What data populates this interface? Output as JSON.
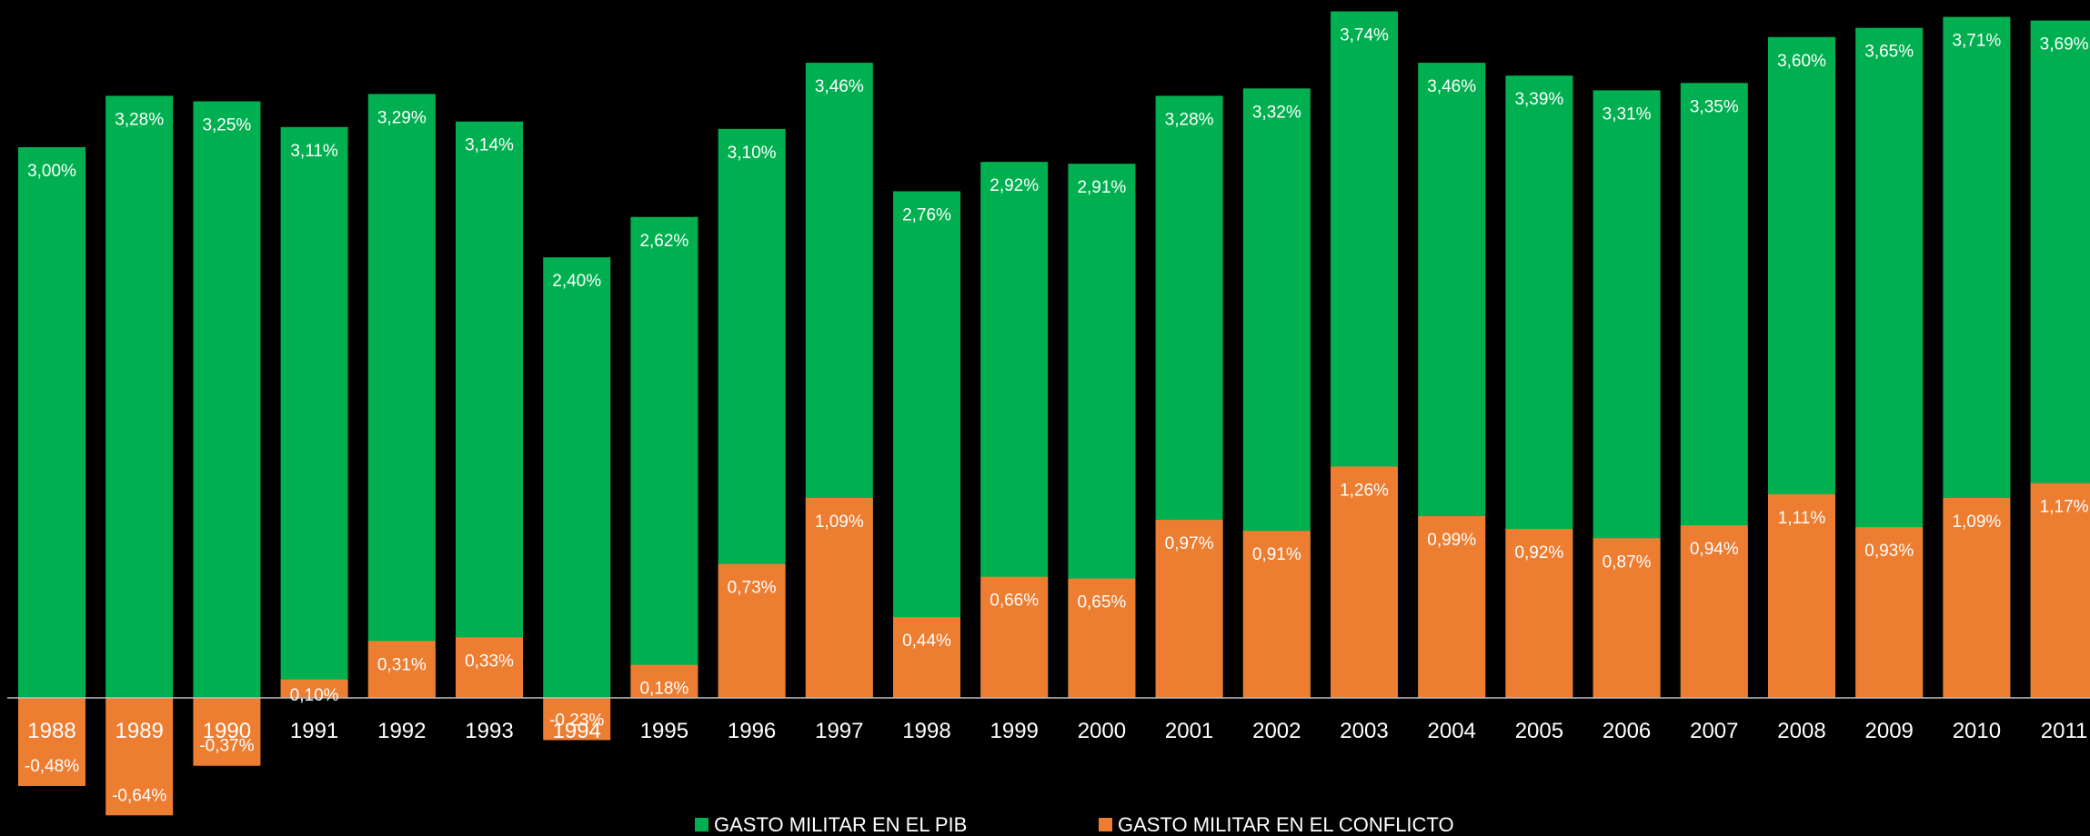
{
  "chart_data": {
    "type": "bar",
    "categories": [
      "1988",
      "1989",
      "1990",
      "1991",
      "1992",
      "1993",
      "1994",
      "1995",
      "1996",
      "1997",
      "1998",
      "1999",
      "2000",
      "2001",
      "2002",
      "2003",
      "2004",
      "2005",
      "2006",
      "2007",
      "2008",
      "2009",
      "2010",
      "2011"
    ],
    "series": [
      {
        "name": "GASTO MILITAR EN EL PIB",
        "color": "#00B050",
        "values": [
          3.0,
          3.28,
          3.25,
          3.11,
          3.29,
          3.14,
          2.4,
          2.62,
          3.1,
          3.46,
          2.76,
          2.92,
          2.91,
          3.28,
          3.32,
          3.74,
          3.46,
          3.39,
          3.31,
          3.35,
          3.6,
          3.65,
          3.71,
          3.69
        ],
        "labels": [
          "3,00%",
          "3,28%",
          "3,25%",
          "3,11%",
          "3,29%",
          "3,14%",
          "2,40%",
          "2,62%",
          "3,10%",
          "3,46%",
          "2,76%",
          "2,92%",
          "2,91%",
          "3,28%",
          "3,32%",
          "3,74%",
          "3,46%",
          "3,39%",
          "3,31%",
          "3,35%",
          "3,60%",
          "3,65%",
          "3,71%",
          "3,69%"
        ]
      },
      {
        "name": "GASTO MILITAR EN EL CONFLICTO",
        "color": "#ED7D31",
        "values": [
          -0.48,
          -0.64,
          -0.37,
          0.1,
          0.31,
          0.33,
          -0.23,
          0.18,
          0.73,
          1.09,
          0.44,
          0.66,
          0.65,
          0.97,
          0.91,
          1.26,
          0.99,
          0.92,
          0.87,
          0.94,
          1.11,
          0.93,
          1.09,
          1.17
        ],
        "labels": [
          "-0,48%",
          "-0,64%",
          "-0,37%",
          "0,10%",
          "0,31%",
          "0,33%",
          "-0,23%",
          "0,18%",
          "0,73%",
          "1,09%",
          "0,44%",
          "0,66%",
          "0,65%",
          "0,97%",
          "0,91%",
          "1,26%",
          "0,99%",
          "0,92%",
          "0,87%",
          "0,94%",
          "1,11%",
          "0,93%",
          "1,09%",
          "1,17%"
        ]
      }
    ],
    "ylim": [
      -0.75,
      3.75
    ],
    "grid": false,
    "legend_position": "bottom-center",
    "axis_color": "#BFBFBF",
    "background": "#000000",
    "text_color": "#FFFFFF"
  }
}
